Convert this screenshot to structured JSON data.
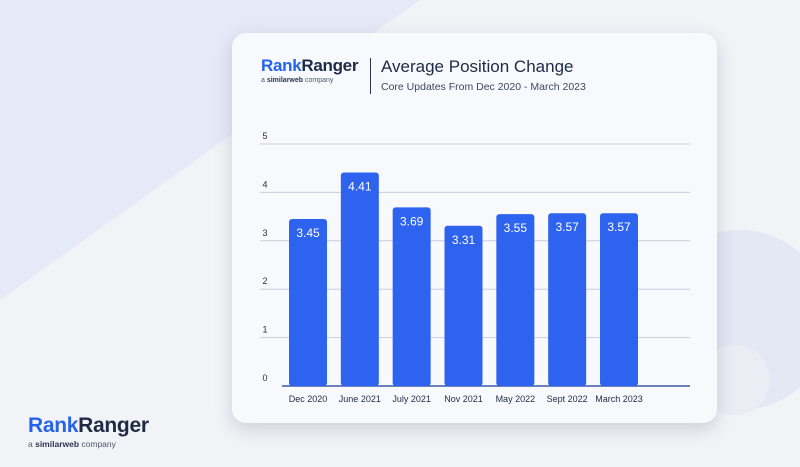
{
  "card": {
    "logo": {
      "rank": "Rank",
      "ranger": "Ranger",
      "tagline_prefix": "a ",
      "tagline_brand": "similarweb",
      "tagline_suffix": " company"
    },
    "title": "Average Position Change",
    "subtitle": "Core Updates From Dec 2020 - March 2023"
  },
  "footer_logo": {
    "rank": "Rank",
    "ranger": "Ranger",
    "tagline_prefix": "a ",
    "tagline_brand": "similarweb",
    "tagline_suffix": " company"
  },
  "colors": {
    "bar": "#2d63ef",
    "grid": "#c9ced9",
    "axis": "#3f5aa8",
    "text": "#1f2a44"
  },
  "chart_data": {
    "type": "bar",
    "title": "Average Position Change",
    "subtitle": "Core Updates From Dec 2020 - March 2023",
    "categories": [
      "Dec 2020",
      "June 2021",
      "July 2021",
      "Nov 2021",
      "May 2022",
      "Sept 2022",
      "March 2023"
    ],
    "values": [
      3.45,
      4.41,
      3.69,
      3.31,
      3.55,
      3.57,
      3.57
    ],
    "data_labels": [
      "3.45",
      "4.41",
      "3.69",
      "3.31",
      "3.55",
      "3.57",
      "3.57"
    ],
    "yticks": [
      "0",
      "1",
      "2",
      "3",
      "4",
      "5"
    ],
    "ylim": [
      0,
      5
    ],
    "grid": true,
    "xlabel": "",
    "ylabel": ""
  }
}
